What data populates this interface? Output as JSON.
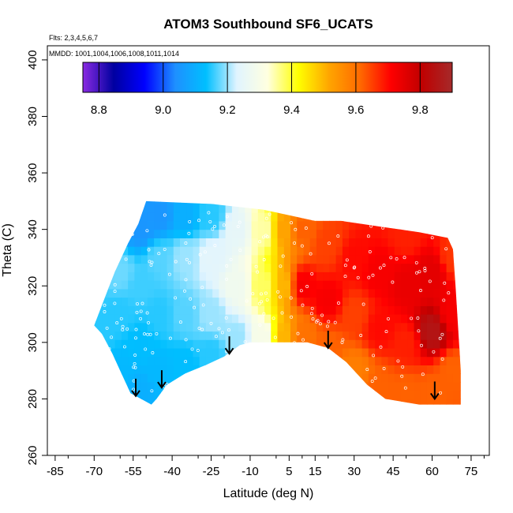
{
  "chart_data": {
    "type": "heatmap",
    "title": "ATOM3 Southbound SF6_UCATS",
    "flights_note": "Flts: 2,3,4,5,6,7",
    "dates_note": "MMDD: 1001,1004,1006,1008,1011,1014",
    "xlabel": "Latitude (deg N)",
    "ylabel": "Theta (C)",
    "xlim": [
      -88,
      82
    ],
    "ylim": [
      260,
      405
    ],
    "x_ticks": [
      -85,
      -70,
      -55,
      -40,
      -25,
      -10,
      5,
      15,
      30,
      45,
      60,
      75
    ],
    "y_ticks": [
      260,
      280,
      300,
      320,
      340,
      360,
      380,
      400
    ],
    "colorbar": {
      "range": [
        8.75,
        9.9
      ],
      "ticks": [
        8.8,
        9.0,
        9.2,
        9.4,
        9.6,
        9.8
      ],
      "colors": [
        "#8a2be2",
        "#0000a0",
        "#0000ff",
        "#1e90ff",
        "#00bfff",
        "#e0f4ff",
        "#ffffe0",
        "#ffff00",
        "#ffa500",
        "#ff6a00",
        "#ff0000",
        "#c00000",
        "#a52a2a"
      ]
    },
    "outline": [
      [
        -48,
        278
      ],
      [
        -52,
        280
      ],
      [
        -56,
        282
      ],
      [
        -60,
        290
      ],
      [
        -63,
        296
      ],
      [
        -67,
        303
      ],
      [
        -70,
        306
      ],
      [
        -65,
        318
      ],
      [
        -62,
        325
      ],
      [
        -57,
        335
      ],
      [
        -53,
        342
      ],
      [
        -50,
        350
      ],
      [
        -25,
        349
      ],
      [
        -5,
        347
      ],
      [
        5,
        345
      ],
      [
        15,
        343
      ],
      [
        25,
        343
      ],
      [
        40,
        341
      ],
      [
        55,
        339
      ],
      [
        66,
        337
      ],
      [
        68,
        333
      ],
      [
        69,
        320
      ],
      [
        70,
        305
      ],
      [
        71,
        290
      ],
      [
        71,
        278
      ],
      [
        65,
        278
      ],
      [
        55,
        278
      ],
      [
        42,
        280
      ],
      [
        35,
        285
      ],
      [
        27,
        293
      ],
      [
        20,
        298
      ],
      [
        12,
        300
      ],
      [
        2,
        300
      ],
      [
        -10,
        300
      ],
      [
        -14,
        299
      ],
      [
        -20,
        295
      ],
      [
        -27,
        292
      ],
      [
        -35,
        289
      ],
      [
        -42,
        285
      ],
      [
        -46,
        280
      ]
    ],
    "field": [
      {
        "lat": -67,
        "theta": 305,
        "value": 9.15
      },
      {
        "lat": -60,
        "theta": 290,
        "value": 9.12
      },
      {
        "lat": -60,
        "theta": 310,
        "value": 9.15
      },
      {
        "lat": -60,
        "theta": 325,
        "value": 9.18
      },
      {
        "lat": -52,
        "theta": 283,
        "value": 9.1
      },
      {
        "lat": -52,
        "theta": 300,
        "value": 9.13
      },
      {
        "lat": -52,
        "theta": 320,
        "value": 9.16
      },
      {
        "lat": -52,
        "theta": 340,
        "value": 9.05
      },
      {
        "lat": -45,
        "theta": 290,
        "value": 9.12
      },
      {
        "lat": -45,
        "theta": 310,
        "value": 9.15
      },
      {
        "lat": -45,
        "theta": 330,
        "value": 9.17
      },
      {
        "lat": -45,
        "theta": 345,
        "value": 9.05
      },
      {
        "lat": -35,
        "theta": 292,
        "value": 9.13
      },
      {
        "lat": -35,
        "theta": 310,
        "value": 9.17
      },
      {
        "lat": -35,
        "theta": 330,
        "value": 9.2
      },
      {
        "lat": -35,
        "theta": 345,
        "value": 9.1
      },
      {
        "lat": -25,
        "theta": 296,
        "value": 9.15
      },
      {
        "lat": -25,
        "theta": 310,
        "value": 9.2
      },
      {
        "lat": -25,
        "theta": 330,
        "value": 9.24
      },
      {
        "lat": -25,
        "theta": 345,
        "value": 9.15
      },
      {
        "lat": -15,
        "theta": 302,
        "value": 9.2
      },
      {
        "lat": -15,
        "theta": 320,
        "value": 9.28
      },
      {
        "lat": -15,
        "theta": 340,
        "value": 9.25
      },
      {
        "lat": -5,
        "theta": 302,
        "value": 9.3
      },
      {
        "lat": -5,
        "theta": 320,
        "value": 9.38
      },
      {
        "lat": -5,
        "theta": 340,
        "value": 9.35
      },
      {
        "lat": 3,
        "theta": 302,
        "value": 9.5
      },
      {
        "lat": 3,
        "theta": 320,
        "value": 9.5
      },
      {
        "lat": 3,
        "theta": 340,
        "value": 9.52
      },
      {
        "lat": 10,
        "theta": 302,
        "value": 9.6
      },
      {
        "lat": 10,
        "theta": 320,
        "value": 9.72
      },
      {
        "lat": 10,
        "theta": 340,
        "value": 9.62
      },
      {
        "lat": 20,
        "theta": 298,
        "value": 9.62
      },
      {
        "lat": 20,
        "theta": 315,
        "value": 9.72
      },
      {
        "lat": 20,
        "theta": 335,
        "value": 9.65
      },
      {
        "lat": 30,
        "theta": 290,
        "value": 9.58
      },
      {
        "lat": 30,
        "theta": 310,
        "value": 9.65
      },
      {
        "lat": 30,
        "theta": 330,
        "value": 9.7
      },
      {
        "lat": 40,
        "theta": 284,
        "value": 9.62
      },
      {
        "lat": 40,
        "theta": 305,
        "value": 9.7
      },
      {
        "lat": 40,
        "theta": 325,
        "value": 9.72
      },
      {
        "lat": 50,
        "theta": 282,
        "value": 9.62
      },
      {
        "lat": 50,
        "theta": 300,
        "value": 9.68
      },
      {
        "lat": 50,
        "theta": 320,
        "value": 9.74
      },
      {
        "lat": 50,
        "theta": 338,
        "value": 9.68
      },
      {
        "lat": 60,
        "theta": 282,
        "value": 9.62
      },
      {
        "lat": 60,
        "theta": 304,
        "value": 9.85
      },
      {
        "lat": 60,
        "theta": 325,
        "value": 9.75
      },
      {
        "lat": 68,
        "theta": 290,
        "value": 9.62
      },
      {
        "lat": 68,
        "theta": 310,
        "value": 9.72
      },
      {
        "lat": 68,
        "theta": 330,
        "value": 9.66
      }
    ],
    "arrows": [
      {
        "lat": -54,
        "theta": 281
      },
      {
        "lat": -44,
        "theta": 284
      },
      {
        "lat": -18,
        "theta": 296
      },
      {
        "lat": 20,
        "theta": 298
      },
      {
        "lat": 61,
        "theta": 280
      }
    ]
  }
}
